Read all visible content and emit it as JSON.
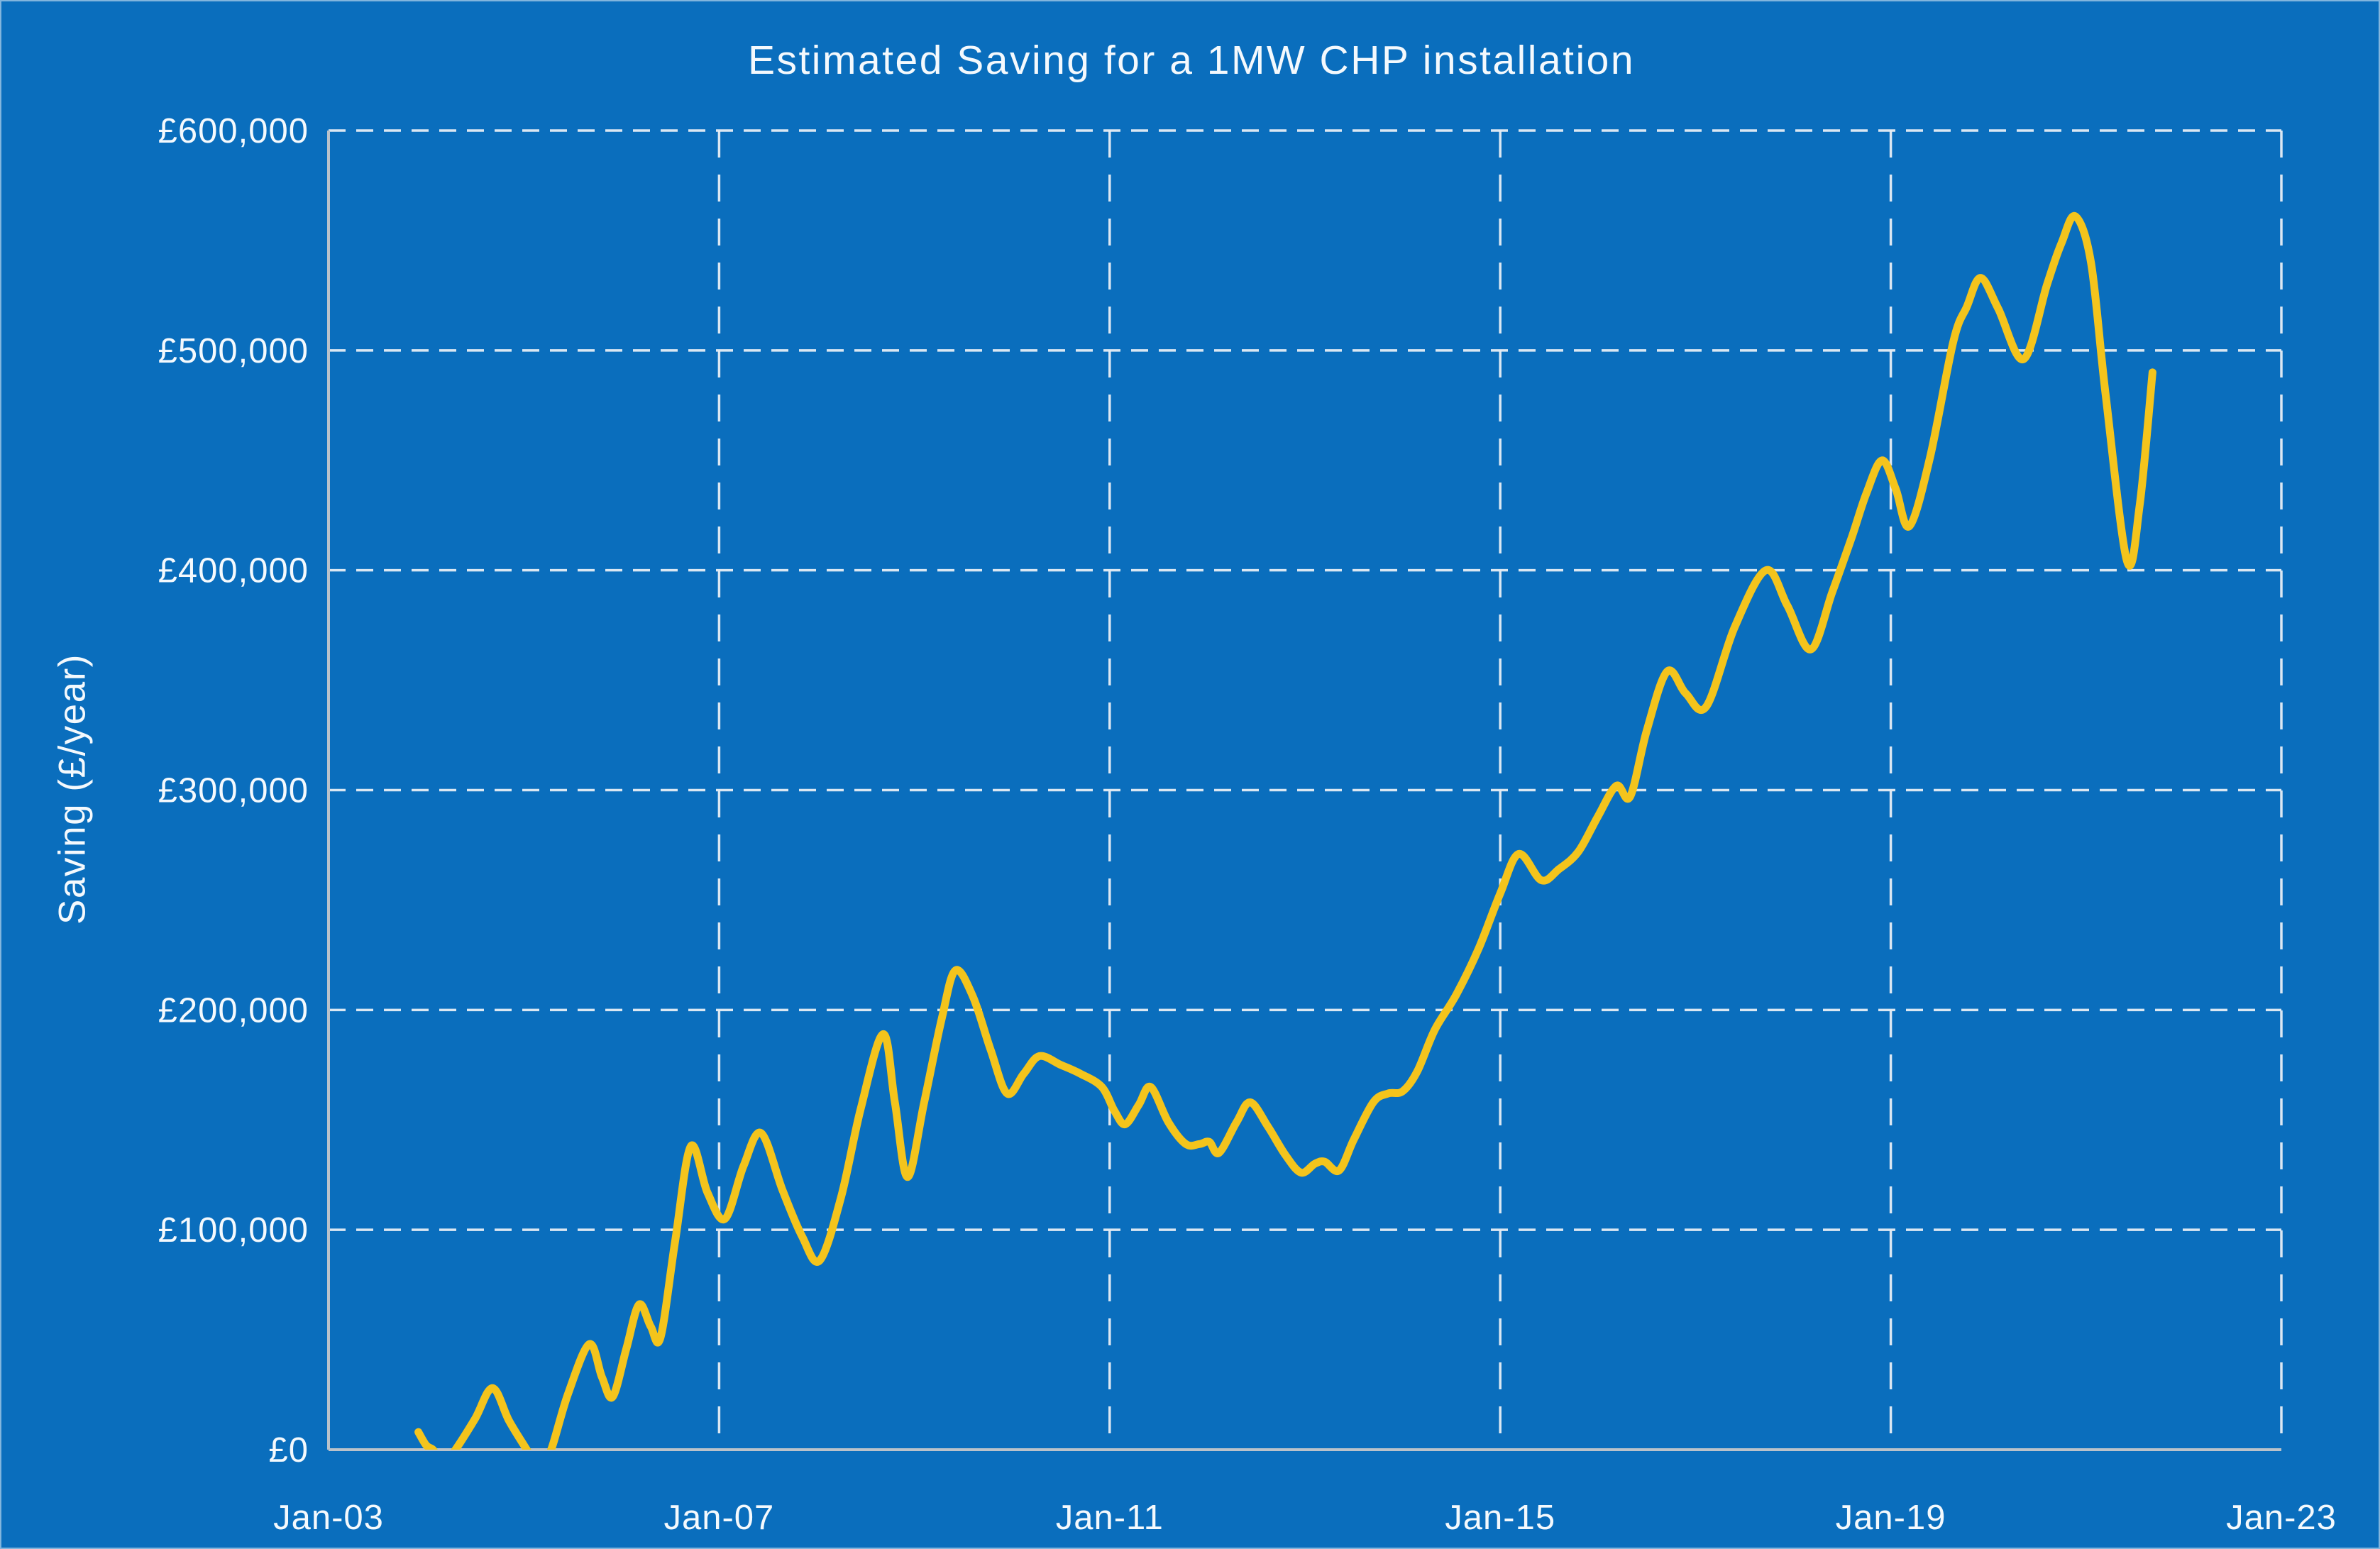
{
  "colors": {
    "background": "#0A6EBD",
    "line": "#F4C41C",
    "grid": "#E7EEF5",
    "axis": "#BAC2CA",
    "text": "#F4F9FD"
  },
  "chart_data": {
    "type": "line",
    "title": "Estimated Saving for a 1MW CHP installation",
    "ylabel": "Saving (£/year)",
    "xlabel": "",
    "xlim": [
      2003,
      2023
    ],
    "ylim": [
      0,
      600000
    ],
    "grid": "dashed white, horizontal every 100000, vertical every 4 years",
    "legend": "none",
    "x_tick_labels": [
      "Jan-03",
      "Jan-07",
      "Jan-11",
      "Jan-15",
      "Jan-19",
      "Jan-23"
    ],
    "x_tick_years": [
      2003,
      2007,
      2011,
      2015,
      2019,
      2023
    ],
    "y_tick_labels": [
      "£0",
      "£100,000",
      "£200,000",
      "£300,000",
      "£400,000",
      "£500,000",
      "£600,000"
    ],
    "y_tick_values": [
      0,
      100000,
      200000,
      300000,
      400000,
      500000,
      600000
    ],
    "series": [
      {
        "color": "#F4C41C",
        "x": [
          2003.92,
          2004.0,
          2004.07,
          2004.13,
          2004.22,
          2004.3,
          2004.5,
          2004.68,
          2004.85,
          2005.03,
          2005.1,
          2005.2,
          2005.28,
          2005.45,
          2005.67,
          2005.8,
          2005.91,
          2006.05,
          2006.18,
          2006.3,
          2006.4,
          2006.55,
          2006.71,
          2006.88,
          2007.06,
          2007.25,
          2007.43,
          2007.65,
          2007.85,
          2008.03,
          2008.25,
          2008.45,
          2008.68,
          2008.8,
          2008.93,
          2009.1,
          2009.28,
          2009.42,
          2009.6,
          2009.78,
          2009.95,
          2010.12,
          2010.28,
          2010.5,
          2010.7,
          2010.92,
          2011.05,
          2011.16,
          2011.3,
          2011.42,
          2011.6,
          2011.78,
          2011.92,
          2012.02,
          2012.12,
          2012.3,
          2012.44,
          2012.62,
          2012.8,
          2012.96,
          2013.1,
          2013.2,
          2013.35,
          2013.5,
          2013.7,
          2013.85,
          2014.0,
          2014.15,
          2014.33,
          2014.55,
          2014.78,
          2015.0,
          2015.19,
          2015.42,
          2015.6,
          2015.8,
          2016.0,
          2016.19,
          2016.33,
          2016.5,
          2016.71,
          2016.9,
          2017.11,
          2017.4,
          2017.72,
          2017.94,
          2018.18,
          2018.4,
          2018.6,
          2018.75,
          2018.91,
          2019.05,
          2019.19,
          2019.4,
          2019.64,
          2019.78,
          2019.92,
          2020.1,
          2020.36,
          2020.6,
          2020.75,
          2020.89,
          2021.05,
          2021.2,
          2021.42,
          2021.55,
          2021.68
        ],
        "y": [
          8000,
          2000,
          0,
          -4000,
          -4000,
          0,
          14000,
          28000,
          13000,
          0,
          -5000,
          -4000,
          0,
          25000,
          48000,
          33000,
          24000,
          46000,
          66000,
          56000,
          51000,
          95000,
          138000,
          117000,
          105000,
          129000,
          144000,
          118000,
          97000,
          86000,
          115000,
          155000,
          189000,
          158000,
          124000,
          158000,
          196000,
          218000,
          206000,
          182000,
          162000,
          171000,
          179000,
          175000,
          171000,
          165000,
          154000,
          148000,
          157000,
          165000,
          149000,
          139000,
          139000,
          140000,
          135000,
          149000,
          158000,
          147000,
          134000,
          126000,
          130000,
          131000,
          127000,
          141000,
          158000,
          162000,
          163000,
          172000,
          191000,
          207000,
          228000,
          253000,
          271000,
          259000,
          264000,
          272000,
          288000,
          302000,
          297000,
          327000,
          354000,
          344000,
          338000,
          374000,
          400000,
          384000,
          364000,
          390000,
          415000,
          435000,
          450000,
          437000,
          420000,
          451000,
          504000,
          520000,
          533000,
          519000,
          496000,
          530000,
          549000,
          561000,
          540000,
          480000,
          404000,
          430000,
          490000
        ]
      }
    ]
  }
}
